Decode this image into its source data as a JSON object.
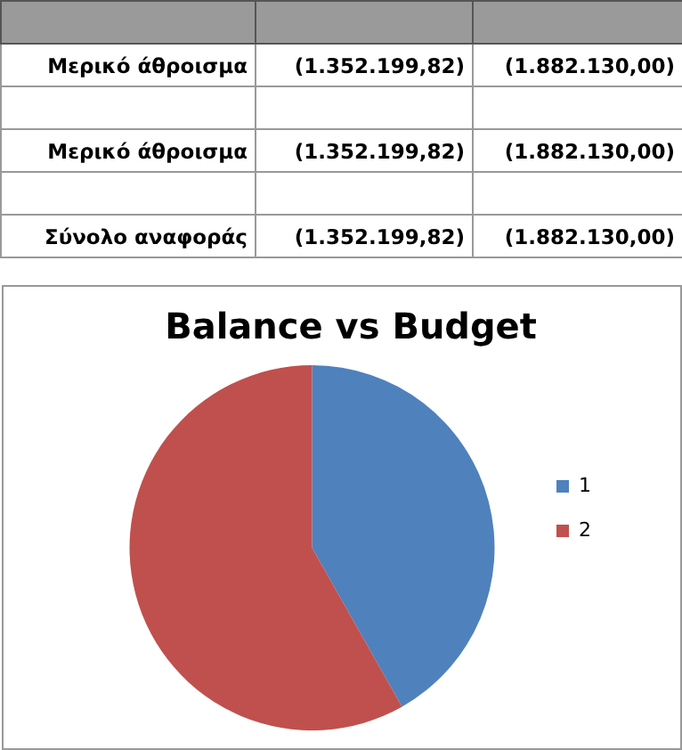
{
  "chart_data": {
    "type": "pie",
    "title": "Balance vs Budget",
    "categories": [
      "1",
      "2"
    ],
    "values": [
      41.8,
      58.2
    ],
    "colors": [
      "#4f81bd",
      "#c0504d"
    ],
    "annotations": [
      "Μερικό άθροισμα",
      "(1.352.199,82)",
      "(1.882.130,00)",
      "Μερικό άθροισμα",
      "(1.352.199,82)",
      "(1.882.130,00)",
      "Σύνολο αναφοράς",
      "(1.352.199,82)",
      "(1.882.130,00)"
    ],
    "legend": "right"
  }
}
